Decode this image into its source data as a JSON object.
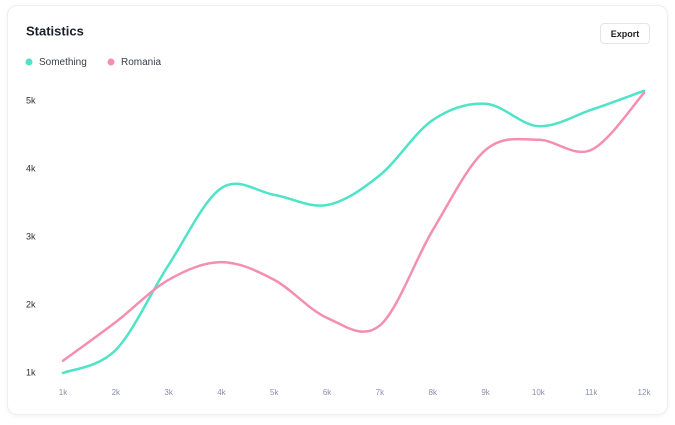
{
  "export_button": "Export",
  "chart_data": {
    "type": "line",
    "title": "Statistics",
    "categories": [
      "1k",
      "2k",
      "3k",
      "4k",
      "5k",
      "6k",
      "7k",
      "8k",
      "9k",
      "10k",
      "11k",
      "12k"
    ],
    "series": [
      {
        "name": "Something",
        "color": "#4fe3c8",
        "values": [
          1000,
          1340,
          2590,
          3720,
          3620,
          3470,
          3910,
          4720,
          4960,
          4630,
          4870,
          5150
        ]
      },
      {
        "name": "Romania",
        "color": "#f48fb1",
        "values": [
          1180,
          1750,
          2370,
          2630,
          2370,
          1810,
          1700,
          3100,
          4280,
          4430,
          4280,
          5120
        ]
      }
    ],
    "ylim": [
      850,
      5200
    ],
    "yticks": [
      {
        "value": 1000,
        "label": "1k"
      },
      {
        "value": 2000,
        "label": "2k"
      },
      {
        "value": 3000,
        "label": "3k"
      },
      {
        "value": 4000,
        "label": "4k"
      },
      {
        "value": 5000,
        "label": "5k"
      }
    ],
    "grid": false,
    "smooth": true
  }
}
